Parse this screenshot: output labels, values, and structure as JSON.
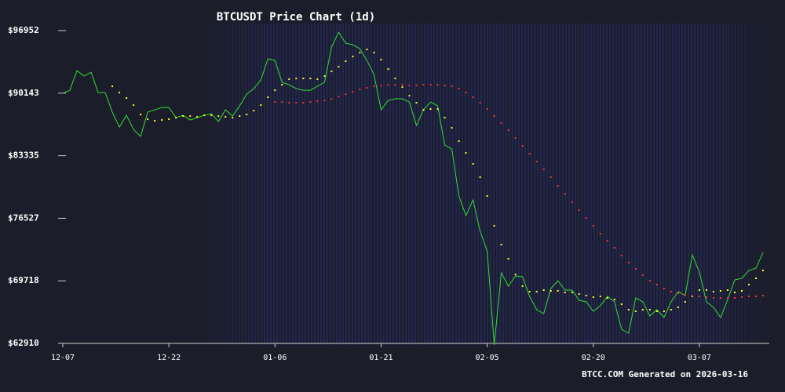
{
  "chart_data": {
    "type": "line",
    "title": "BTCUSDT Price Chart (1d)",
    "footer": "BTCC.COM Generated on 2026-03-16",
    "x": [
      "12-07",
      "12-08",
      "12-09",
      "12-10",
      "12-11",
      "12-12",
      "12-13",
      "12-14",
      "12-15",
      "12-16",
      "12-17",
      "12-18",
      "12-19",
      "12-20",
      "12-21",
      "12-22",
      "12-23",
      "12-24",
      "12-25",
      "12-26",
      "12-27",
      "12-28",
      "12-29",
      "12-30",
      "12-31",
      "01-01",
      "01-02",
      "01-03",
      "01-04",
      "01-05",
      "01-06",
      "01-07",
      "01-08",
      "01-09",
      "01-10",
      "01-11",
      "01-12",
      "01-13",
      "01-14",
      "01-15",
      "01-16",
      "01-17",
      "01-18",
      "01-19",
      "01-20",
      "01-21",
      "01-22",
      "01-23",
      "01-24",
      "01-25",
      "01-26",
      "01-27",
      "01-28",
      "01-29",
      "01-30",
      "01-31",
      "02-01",
      "02-02",
      "02-03",
      "02-04",
      "02-05",
      "02-06",
      "02-07",
      "02-08",
      "02-09",
      "02-10",
      "02-11",
      "02-12",
      "02-13",
      "02-14",
      "02-15",
      "02-16",
      "02-17",
      "02-18",
      "02-19",
      "02-20",
      "02-21",
      "02-22",
      "02-23",
      "02-24",
      "02-25",
      "02-26",
      "02-27",
      "02-28",
      "03-01",
      "03-02",
      "03-03",
      "03-04",
      "03-05",
      "03-06",
      "03-07",
      "03-08",
      "03-09",
      "03-10",
      "03-11",
      "03-12",
      "03-13",
      "03-14",
      "03-15",
      "03-16"
    ],
    "xticks": [
      "12-07",
      "12-22",
      "01-06",
      "01-21",
      "02-05",
      "02-20",
      "03-07"
    ],
    "ylim": [
      62910,
      96952
    ],
    "yticks": [
      {
        "value": 62910,
        "label": "$62910"
      },
      {
        "value": 69718,
        "label": "$69718"
      },
      {
        "value": 76527,
        "label": "$76527"
      },
      {
        "value": 83335,
        "label": "$83335"
      },
      {
        "value": 90143,
        "label": "$90143"
      },
      {
        "value": 96952,
        "label": "$96952"
      }
    ],
    "series": [
      {
        "color": "#33dd33",
        "style": "line",
        "values": [
          90121,
          90462,
          92594,
          91997,
          92424,
          90206,
          90206,
          88074,
          86453,
          87732,
          86197,
          85429,
          88074,
          88329,
          88585,
          88585,
          87476,
          87732,
          87221,
          87476,
          87732,
          87903,
          87050,
          88329,
          87647,
          88756,
          90035,
          90633,
          91571,
          93874,
          93703,
          91315,
          91059,
          90633,
          90462,
          90462,
          90888,
          91315,
          95153,
          96774,
          95580,
          95409,
          94983,
          93703,
          92168,
          88329,
          89353,
          89524,
          89524,
          89182,
          86623,
          88329,
          89182,
          88756,
          84491,
          84064,
          78946,
          76814,
          78520,
          75108,
          72975,
          62740,
          70587,
          69137,
          70246,
          70161,
          68028,
          66578,
          66151,
          68881,
          69734,
          68710,
          68710,
          67602,
          67431,
          66407,
          67004,
          68028,
          67431,
          64445,
          64019,
          67857,
          67431,
          65896,
          66578,
          65725,
          67431,
          68540,
          68113,
          72549,
          70672,
          67431,
          66834,
          65725,
          67687,
          69819,
          69990,
          70843,
          71099,
          72805
        ]
      },
      {
        "color": "#ffff33",
        "style": "dots",
        "values": [
          null,
          null,
          null,
          null,
          null,
          null,
          null,
          90888,
          90206,
          89609,
          88841,
          87818,
          87306,
          87135,
          87221,
          87306,
          87476,
          87647,
          87647,
          87562,
          87732,
          87732,
          87647,
          87562,
          87476,
          87647,
          87818,
          88244,
          88841,
          89694,
          90462,
          91059,
          91656,
          91741,
          91741,
          91741,
          91656,
          91997,
          92509,
          93021,
          93618,
          94130,
          94556,
          94898,
          94556,
          93789,
          92765,
          91741,
          90803,
          89865,
          89097,
          88329,
          88415,
          88415,
          87476,
          86368,
          84917,
          83638,
          82444,
          80994,
          78946,
          75705,
          73658,
          72122,
          70416,
          69137,
          68540,
          68540,
          68710,
          68625,
          68625,
          68455,
          68455,
          68284,
          68113,
          67943,
          68028,
          67857,
          67687,
          67175,
          66578,
          66407,
          66578,
          66578,
          66407,
          66407,
          66578,
          66834,
          67431,
          68028,
          68710,
          68710,
          68540,
          68625,
          68710,
          68455,
          68625,
          69308,
          69990,
          70843
        ]
      },
      {
        "color": "#ff3333",
        "style": "dots",
        "values": [
          null,
          null,
          null,
          null,
          null,
          null,
          null,
          null,
          null,
          null,
          null,
          null,
          null,
          null,
          null,
          null,
          null,
          null,
          null,
          null,
          null,
          null,
          null,
          null,
          null,
          null,
          null,
          null,
          null,
          null,
          89182,
          89182,
          89097,
          89097,
          89097,
          89182,
          89268,
          89353,
          89524,
          89780,
          90035,
          90291,
          90547,
          90718,
          90888,
          90974,
          91059,
          91059,
          91059,
          90974,
          90974,
          91059,
          91059,
          91059,
          90974,
          90888,
          90633,
          90206,
          89694,
          89097,
          88415,
          87647,
          86879,
          86112,
          85259,
          84406,
          83553,
          82700,
          81847,
          80994,
          80055,
          79202,
          78264,
          77411,
          76558,
          75705,
          74852,
          74084,
          73317,
          72464,
          71696,
          71014,
          70331,
          69734,
          69308,
          68881,
          68540,
          68369,
          68199,
          68113,
          68028,
          67943,
          67857,
          67857,
          67857,
          67857,
          67943,
          68028,
          68028,
          68113
        ]
      }
    ]
  }
}
